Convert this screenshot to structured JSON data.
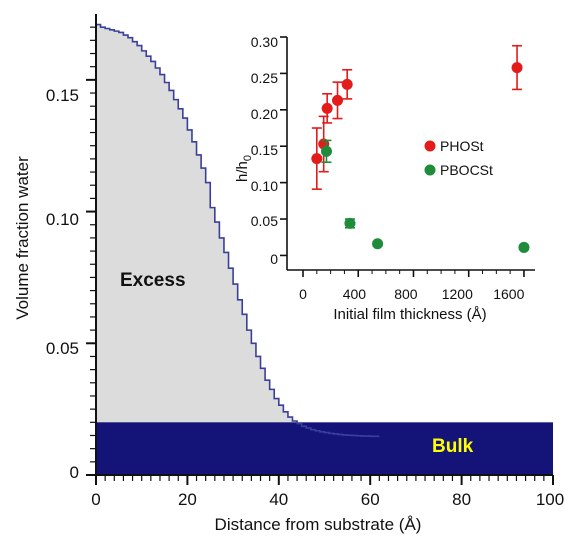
{
  "chart_data": [
    {
      "type": "area",
      "xlabel": "Distance from substrate (Å)",
      "ylabel": "Volume fraction water",
      "xlim": [
        0,
        100
      ],
      "ylim": [
        0,
        0.175
      ],
      "x_ticks": [
        "0",
        "20",
        "40",
        "60",
        "80",
        "100"
      ],
      "y_ticks": [
        "0",
        "0.05",
        "0.10",
        "0.15"
      ],
      "grid": false,
      "profile": {
        "x": [
          0,
          1,
          2,
          3,
          4,
          5,
          6,
          7,
          8,
          9,
          10,
          11,
          12,
          13,
          14,
          15,
          16,
          17,
          18,
          19,
          20,
          21,
          22,
          23,
          24,
          25,
          26,
          27,
          28,
          29,
          30,
          31,
          32,
          33,
          34,
          35,
          36,
          37,
          38,
          39,
          40,
          41,
          42,
          43,
          44,
          45,
          46,
          47,
          48,
          49,
          50,
          51,
          52,
          53,
          54,
          55,
          56,
          57,
          58,
          59,
          60,
          61,
          62
        ],
        "y": [
          0.171,
          0.17,
          0.1695,
          0.169,
          0.1685,
          0.168,
          0.167,
          0.166,
          0.1645,
          0.163,
          0.161,
          0.159,
          0.157,
          0.1545,
          0.152,
          0.149,
          0.146,
          0.1425,
          0.139,
          0.1355,
          0.131,
          0.1265,
          0.1215,
          0.1165,
          0.111,
          0.1015,
          0.096,
          0.09,
          0.0845,
          0.0785,
          0.0725,
          0.0665,
          0.061,
          0.055,
          0.05,
          0.045,
          0.0405,
          0.036,
          0.0325,
          0.029,
          0.0265,
          0.024,
          0.022,
          0.0205,
          0.0195,
          0.0185,
          0.0178,
          0.0172,
          0.0168,
          0.0164,
          0.0161,
          0.0158,
          0.0156,
          0.0154,
          0.0152,
          0.0151,
          0.015,
          0.0149,
          0.0148,
          0.0148,
          0.0147,
          0.0147,
          0.0147
        ]
      },
      "bulk_fraction": 0.02,
      "annotations": [
        "Excess",
        "Bulk"
      ],
      "colors": {
        "excess_fill": "#dcdcdc",
        "profile_line": "#3a3f9a",
        "bulk_fill": "#141478",
        "bulk_text": "#ffff00",
        "excess_text": "#111111"
      }
    },
    {
      "type": "scatter",
      "xlabel": "Initial film thickness (Å)",
      "ylabel_main": "h/h",
      "ylabel_sub": "0",
      "xlim": [
        0,
        1680
      ],
      "ylim": [
        -0.02,
        0.3
      ],
      "x_ticks": [
        "0",
        "400",
        "800",
        "1200",
        "1600"
      ],
      "y_ticks": [
        "0",
        "0.05",
        "0.10",
        "0.15",
        "0.20",
        "0.25",
        "0.30"
      ],
      "legend_position": "right",
      "series": [
        {
          "name": "PHOSt",
          "color": "#e21b1b",
          "points": [
            {
              "x": 100,
              "y": 0.133,
              "err": 0.042
            },
            {
              "x": 150,
              "y": 0.153,
              "err": 0.038
            },
            {
              "x": 175,
              "y": 0.202,
              "err": 0.02
            },
            {
              "x": 250,
              "y": 0.213,
              "err": 0.025
            },
            {
              "x": 320,
              "y": 0.235,
              "err": 0.02
            },
            {
              "x": 1550,
              "y": 0.258,
              "err": 0.03
            }
          ]
        },
        {
          "name": "PBOCSt",
          "color": "#1e8c3a",
          "points": [
            {
              "x": 170,
              "y": 0.143,
              "err": 0.015
            },
            {
              "x": 340,
              "y": 0.044,
              "err": 0.006
            },
            {
              "x": 540,
              "y": 0.016,
              "err": 0.003
            },
            {
              "x": 1600,
              "y": 0.011,
              "err": 0.003
            }
          ]
        }
      ]
    }
  ]
}
